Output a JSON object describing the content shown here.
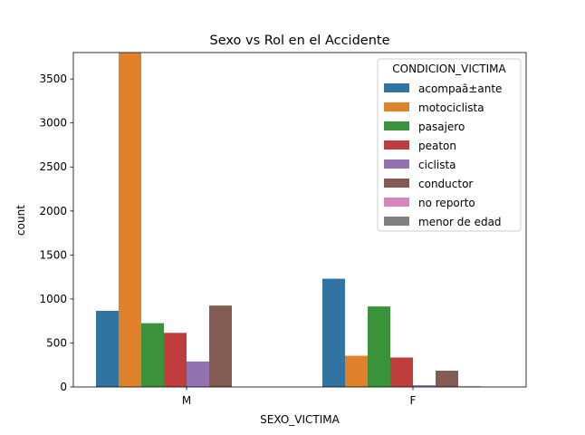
{
  "chart_data": {
    "type": "bar",
    "title": "Sexo vs Rol en el Accidente",
    "xlabel": "SEXO_VICTIMA",
    "ylabel": "count",
    "categories": [
      "M",
      "F"
    ],
    "ylim": [
      0,
      3800
    ],
    "yticks": [
      0,
      500,
      1000,
      1500,
      2000,
      2500,
      3000,
      3500
    ],
    "legend_title": "CONDICION_VICTIMA",
    "legend_position": "top-right",
    "grid": false,
    "series": [
      {
        "name": "acompaã±ante",
        "color": "#3274a1",
        "values": [
          865,
          1230
        ]
      },
      {
        "name": "motociclista",
        "color": "#e1812c",
        "values": [
          3795,
          355
        ]
      },
      {
        "name": "pasajero",
        "color": "#3a923a",
        "values": [
          725,
          915
        ]
      },
      {
        "name": "peaton",
        "color": "#c03d3e",
        "values": [
          615,
          335
        ]
      },
      {
        "name": "ciclista",
        "color": "#9372b2",
        "values": [
          290,
          20
        ]
      },
      {
        "name": "conductor",
        "color": "#845b53",
        "values": [
          925,
          185
        ]
      },
      {
        "name": "no reporto",
        "color": "#d684bd",
        "values": [
          0,
          8
        ]
      },
      {
        "name": "menor de edad",
        "color": "#7f7f7f",
        "values": [
          0,
          0
        ]
      }
    ]
  }
}
